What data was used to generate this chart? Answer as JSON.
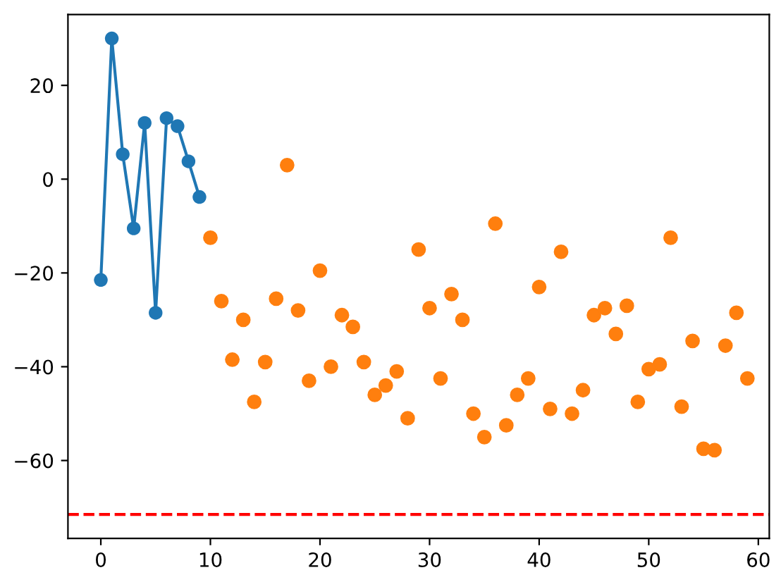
{
  "chart_data": {
    "type": "line",
    "series": [
      {
        "color": "#1f77b4",
        "marker": "circle",
        "x": [
          0,
          1,
          2,
          3,
          4,
          5,
          6,
          7,
          8,
          9
        ],
        "values": [
          -21.5,
          30,
          5.3,
          -10.5,
          12,
          -28.5,
          13,
          11.3,
          3.8,
          -3.8
        ]
      },
      {
        "type": "scatter",
        "color": "#ff7f0e",
        "marker": "circle",
        "x": [
          10,
          11,
          12,
          13,
          14,
          15,
          16,
          17,
          18,
          19,
          20,
          21,
          22,
          23,
          24,
          25,
          26,
          27,
          28,
          29,
          30,
          31,
          32,
          33,
          34,
          35,
          36,
          37,
          38,
          39,
          40,
          41,
          42,
          43,
          44,
          45,
          46,
          47,
          48,
          49,
          50,
          51,
          52,
          53,
          54,
          55,
          56,
          57,
          58,
          59
        ],
        "values": [
          -12.5,
          -26,
          -38.5,
          -30,
          -47.5,
          -39,
          -25.5,
          3,
          -28,
          -43,
          -19.5,
          -40,
          -29,
          -31.5,
          -39,
          -46,
          -44,
          -41,
          -51,
          -15,
          -27.5,
          -42.5,
          -24.5,
          -30,
          -50,
          -55,
          -9.5,
          -52.5,
          -46,
          -42.5,
          -23,
          -49,
          -15.5,
          -50,
          -45,
          -29,
          -27.5,
          -33,
          -27,
          -47.5,
          -40.5,
          -39.5,
          -12.5,
          -48.5,
          -34.5,
          -57.5,
          -57.8,
          -35.5,
          -28.5,
          -42.5
        ]
      }
    ],
    "ref_lines": [
      {
        "axis": "y",
        "value": -71.5,
        "color": "#ff0000",
        "line_style": "dashed"
      }
    ],
    "xlim": [
      -3,
      61
    ],
    "ylim": [
      -76.6,
      35.1
    ],
    "xticks": [
      0,
      10,
      20,
      30,
      40,
      50,
      60
    ],
    "yticks": [
      {
        "value": -60,
        "label": "−60"
      },
      {
        "value": -40,
        "label": "−40"
      },
      {
        "value": -20,
        "label": "−20"
      },
      0,
      20
    ],
    "grid": false,
    "legend": false
  }
}
